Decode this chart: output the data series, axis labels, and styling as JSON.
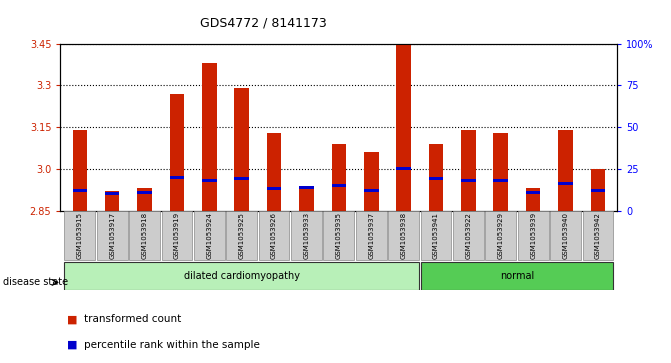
{
  "title": "GDS4772 / 8141173",
  "samples": [
    "GSM1053915",
    "GSM1053917",
    "GSM1053918",
    "GSM1053919",
    "GSM1053924",
    "GSM1053925",
    "GSM1053926",
    "GSM1053933",
    "GSM1053935",
    "GSM1053937",
    "GSM1053938",
    "GSM1053941",
    "GSM1053922",
    "GSM1053929",
    "GSM1053939",
    "GSM1053940",
    "GSM1053942"
  ],
  "transformed_count": [
    3.14,
    2.92,
    2.93,
    3.27,
    3.38,
    3.29,
    3.13,
    2.93,
    3.09,
    3.06,
    3.46,
    3.09,
    3.14,
    3.13,
    2.93,
    3.14,
    3.0
  ],
  "percentile_rank": [
    12,
    10,
    11,
    20,
    18,
    19,
    13,
    14,
    15,
    12,
    25,
    19,
    18,
    18,
    11,
    16,
    12
  ],
  "disease_groups": [
    {
      "label": "dilated cardiomyopathy",
      "start": 0,
      "end": 11,
      "color": "#b8f0b8"
    },
    {
      "label": "normal",
      "start": 11,
      "end": 17,
      "color": "#55cc55"
    }
  ],
  "y_min": 2.85,
  "y_max": 3.45,
  "y_ticks_left": [
    2.85,
    3.0,
    3.15,
    3.3,
    3.45
  ],
  "y_ticks_right": [
    0,
    25,
    50,
    75,
    100
  ],
  "bar_color": "#cc2200",
  "marker_color": "#0000cc",
  "plot_bg": "#ffffff",
  "legend_red": "transformed count",
  "legend_blue": "percentile rank within the sample",
  "disease_state_label": "disease state"
}
